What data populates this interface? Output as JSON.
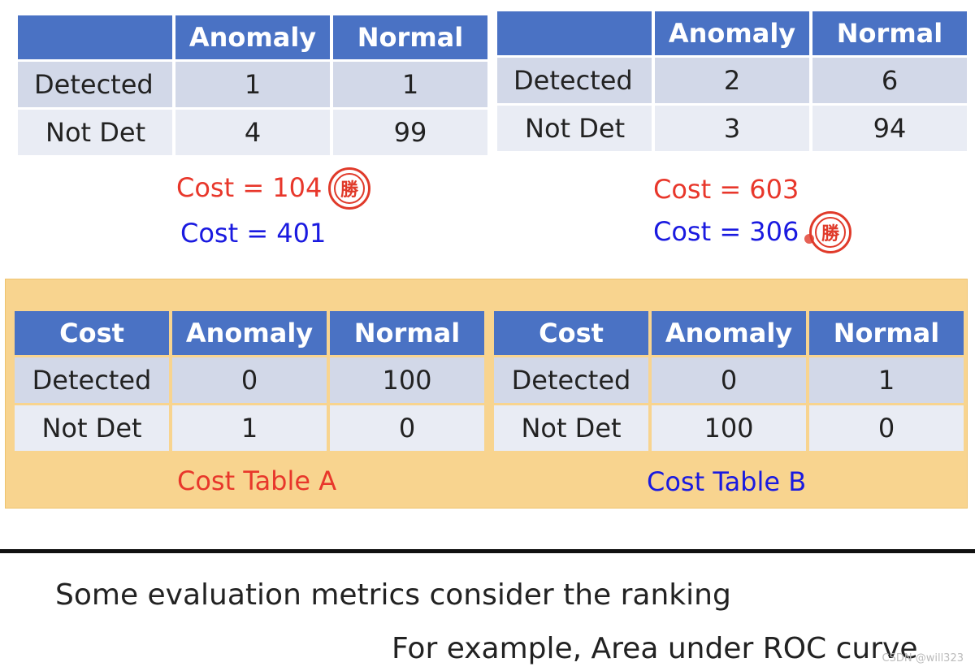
{
  "confusion_a": {
    "headers": [
      "",
      "Anomaly",
      "Normal"
    ],
    "rows": [
      {
        "label": "Detected",
        "anomaly": "1",
        "normal": "1"
      },
      {
        "label": "Not Det",
        "anomaly": "4",
        "normal": "99"
      }
    ]
  },
  "confusion_b": {
    "headers": [
      "",
      "Anomaly",
      "Normal"
    ],
    "rows": [
      {
        "label": "Detected",
        "anomaly": "2",
        "normal": "6"
      },
      {
        "label": "Not Det",
        "anomaly": "3",
        "normal": "94"
      }
    ]
  },
  "costs_a": {
    "cost_table_a": "Cost = 104",
    "cost_table_b": "Cost = 401",
    "winner_stamp": "勝"
  },
  "costs_b": {
    "cost_table_a": "Cost = 603",
    "cost_table_b": "Cost = 306",
    "winner_stamp": "勝"
  },
  "cost_table_a": {
    "headers": [
      "Cost",
      "Anomaly",
      "Normal"
    ],
    "rows": [
      {
        "label": "Detected",
        "anomaly": "0",
        "normal": "100"
      },
      {
        "label": "Not Det",
        "anomaly": "1",
        "normal": "0"
      }
    ],
    "caption": "Cost Table A"
  },
  "cost_table_b": {
    "headers": [
      "Cost",
      "Anomaly",
      "Normal"
    ],
    "rows": [
      {
        "label": "Detected",
        "anomaly": "0",
        "normal": "1"
      },
      {
        "label": "Not Det",
        "anomaly": "100",
        "normal": "0"
      }
    ],
    "caption": "Cost Table B"
  },
  "footer": {
    "line1": "Some evaluation metrics consider the ranking",
    "line2": "For example, Area under ROC curve",
    "watermark": "CSDN @will323"
  },
  "colors": {
    "header": "#4a72c4",
    "cell_dark": "#d2d8e8",
    "cell_light": "#e9ecf4",
    "panel": "#f8d48f",
    "red": "#e8372b",
    "blue": "#1a1ae0"
  }
}
